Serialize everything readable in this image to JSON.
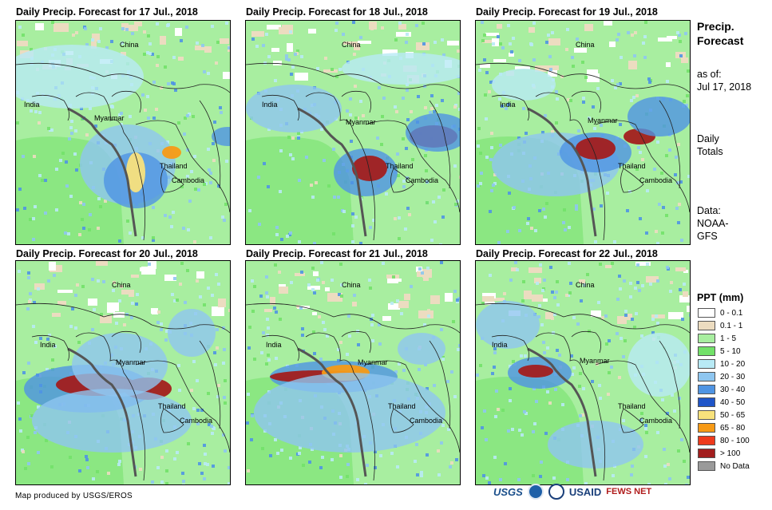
{
  "panels": [
    {
      "title": "Daily Precip. Forecast for 17 Jul., 2018"
    },
    {
      "title": "Daily Precip. Forecast for 18 Jul., 2018"
    },
    {
      "title": "Daily Precip. Forecast for 19 Jul., 2018"
    },
    {
      "title": "Daily Precip. Forecast for 20 Jul., 2018"
    },
    {
      "title": "Daily Precip. Forecast for 21 Jul., 2018"
    },
    {
      "title": "Daily Precip. Forecast for 22 Jul., 2018"
    }
  ],
  "map_labels": {
    "china": "China",
    "india": "India",
    "myanmar": "Myanmar",
    "thailand": "Thailand",
    "cambodia": "Cambodia"
  },
  "sidebar": {
    "title_line1": "Precip.",
    "title_line2": "Forecast",
    "asof_line1": "as of:",
    "asof_line2": "Jul 17, 2018",
    "daily_line1": "Daily",
    "daily_line2": "Totals",
    "data_line1": "Data:",
    "data_line2": "NOAA-",
    "data_line3": "GFS"
  },
  "legend": {
    "title": "PPT (mm)",
    "items": [
      {
        "label": "0 - 0.1",
        "color": "#ffffff"
      },
      {
        "label": "0.1 - 1",
        "color": "#ecdcc0"
      },
      {
        "label": "1 - 5",
        "color": "#a8eea0"
      },
      {
        "label": "5 - 10",
        "color": "#72e169"
      },
      {
        "label": "10 - 20",
        "color": "#b8eaf5"
      },
      {
        "label": "20 - 30",
        "color": "#8ec6f0"
      },
      {
        "label": "30 - 40",
        "color": "#4f94e3"
      },
      {
        "label": "40 - 50",
        "color": "#1f55c8"
      },
      {
        "label": "50 - 65",
        "color": "#f8e27c"
      },
      {
        "label": "65 - 80",
        "color": "#f79a16"
      },
      {
        "label": "80 - 100",
        "color": "#ee3a1c"
      },
      {
        "label": "> 100",
        "color": "#a21e1e"
      },
      {
        "label": "No Data",
        "color": "#9a9a9a"
      }
    ]
  },
  "footer": {
    "credit": "Map produced by USGS/EROS",
    "logo_usgs": "USGS",
    "logo_usaid": "USAID",
    "logo_fews": "FEWS NET"
  }
}
